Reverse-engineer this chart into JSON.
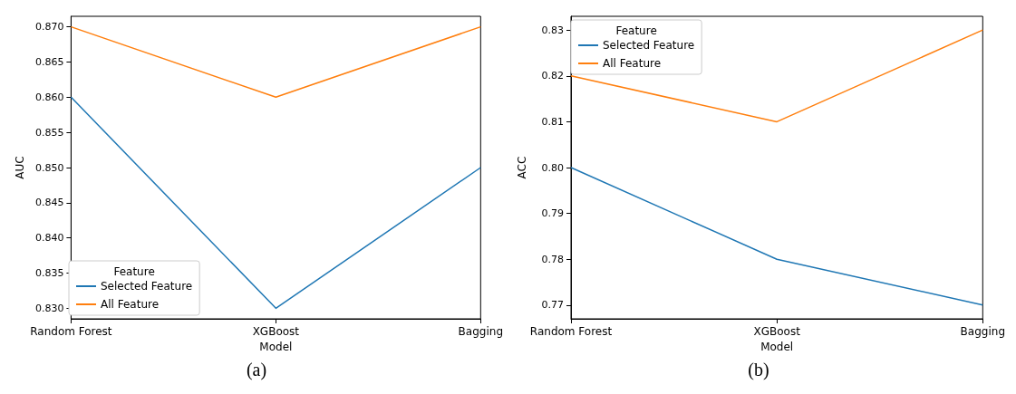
{
  "chart_data": [
    {
      "type": "line",
      "xlabel": "Model",
      "ylabel": "AUC",
      "legend_title": "Feature",
      "legend": "bottom left",
      "grid": false,
      "categories": [
        "Random Forest",
        "XGBoost",
        "Bagging"
      ],
      "series": [
        {
          "name": "Selected Feature",
          "color": "#1f77b4",
          "values": [
            0.86,
            0.83,
            0.85
          ]
        },
        {
          "name": "All Feature",
          "color": "#ff7f0e",
          "values": [
            0.87,
            0.86,
            0.87
          ]
        }
      ],
      "ylim": [
        0.8285,
        0.8715
      ],
      "yticks": [
        {
          "value": 0.83,
          "label": "0.830"
        },
        {
          "value": 0.835,
          "label": "0.835"
        },
        {
          "value": 0.84,
          "label": "0.840"
        },
        {
          "value": 0.845,
          "label": "0.845"
        },
        {
          "value": 0.85,
          "label": "0.850"
        },
        {
          "value": 0.855,
          "label": "0.855"
        },
        {
          "value": 0.86,
          "label": "0.860"
        },
        {
          "value": 0.865,
          "label": "0.865"
        },
        {
          "value": 0.87,
          "label": "0.870"
        }
      ],
      "annotations": [
        "(a)"
      ]
    },
    {
      "type": "line",
      "xlabel": "Model",
      "ylabel": "ACC",
      "legend_title": "Feature",
      "legend": "top left",
      "grid": false,
      "categories": [
        "Random Forest",
        "XGBoost",
        "Bagging"
      ],
      "series": [
        {
          "name": "Selected Feature",
          "color": "#1f77b4",
          "values": [
            0.8,
            0.78,
            0.77
          ]
        },
        {
          "name": "All Feature",
          "color": "#ff7f0e",
          "values": [
            0.82,
            0.81,
            0.83
          ]
        }
      ],
      "ylim": [
        0.767,
        0.833
      ],
      "yticks": [
        {
          "value": 0.77,
          "label": "0.77"
        },
        {
          "value": 0.78,
          "label": "0.78"
        },
        {
          "value": 0.79,
          "label": "0.79"
        },
        {
          "value": 0.8,
          "label": "0.80"
        },
        {
          "value": 0.81,
          "label": "0.81"
        },
        {
          "value": 0.82,
          "label": "0.82"
        },
        {
          "value": 0.83,
          "label": "0.83"
        }
      ],
      "annotations": [
        "(b)"
      ]
    }
  ]
}
